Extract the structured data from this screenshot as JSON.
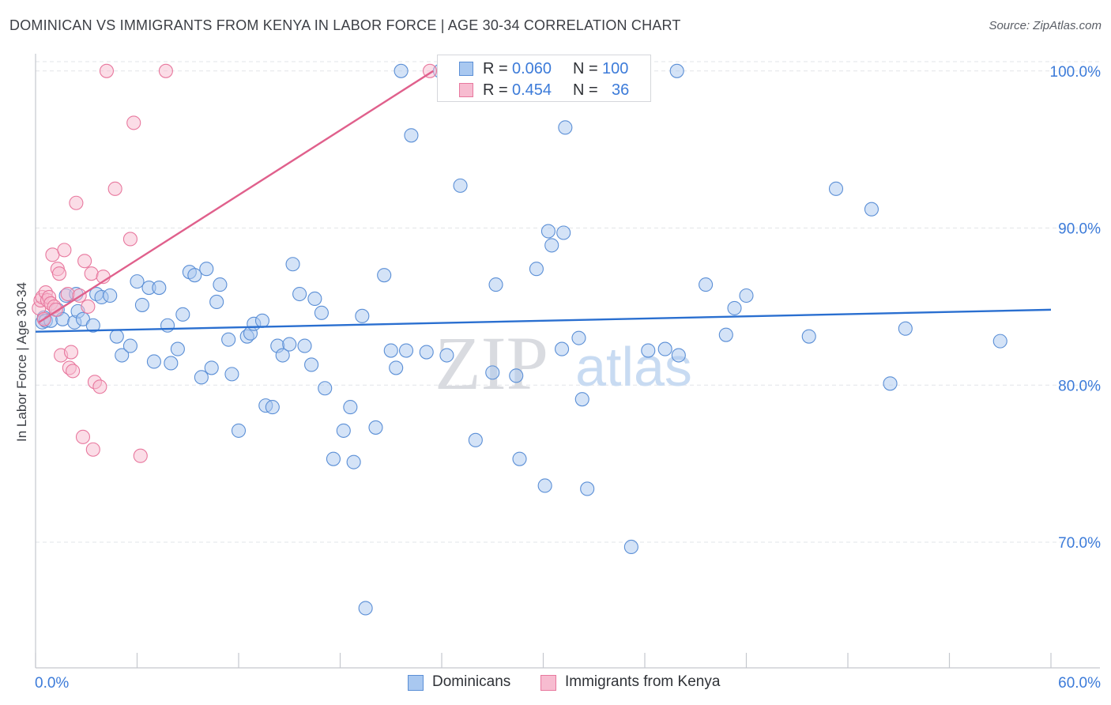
{
  "header": {
    "title": "DOMINICAN VS IMMIGRANTS FROM KENYA IN LABOR FORCE | AGE 30-34 CORRELATION CHART",
    "source": "Source: ZipAtlas.com"
  },
  "watermark": {
    "zip": "ZIP",
    "atlas": "atlas"
  },
  "colors": {
    "blue_fill": "#a9c8f0",
    "blue_stroke": "#5b8fd6",
    "blue_line": "#2a6fd0",
    "pink_fill": "#f7bcd0",
    "pink_stroke": "#e8789e",
    "pink_line": "#e0608c",
    "grid": "#e2e4e8",
    "axis_text": "#3c7bd9"
  },
  "legend": {
    "blue": {
      "r_label": "R =",
      "r_value": "0.060",
      "n_label": "N =",
      "n_value": "100"
    },
    "pink": {
      "r_label": "R =",
      "r_value": "0.454",
      "n_label": "N =",
      "n_value": "36"
    }
  },
  "chart_data": {
    "type": "scatter",
    "title": "DOMINICAN VS IMMIGRANTS FROM KENYA IN LABOR FORCE | AGE 30-34 CORRELATION CHART",
    "xlabel": "",
    "ylabel": "In Labor Force | Age 30-34",
    "xlim": [
      0,
      60
    ],
    "ylim": [
      62,
      101.5
    ],
    "x_tick_labels": [
      "0.0%",
      "60.0%"
    ],
    "y_ticks": [
      70,
      80,
      90,
      100
    ],
    "y_tick_labels": [
      "70.0%",
      "80.0%",
      "90.0%",
      "100.0%"
    ],
    "grid": true,
    "legend_position": "top-center",
    "series": [
      {
        "name": "Dominicans",
        "r": 0.06,
        "n": 100,
        "trend": [
          [
            0,
            83.4
          ],
          [
            60,
            84.8
          ]
        ],
        "points": [
          [
            0.4,
            84.0
          ],
          [
            0.5,
            84.3
          ],
          [
            0.6,
            84.1
          ],
          [
            0.9,
            84.1
          ],
          [
            1.3,
            84.8
          ],
          [
            1.6,
            84.2
          ],
          [
            1.8,
            85.7
          ],
          [
            2.3,
            84.0
          ],
          [
            2.4,
            85.8
          ],
          [
            2.5,
            84.7
          ],
          [
            2.8,
            84.2
          ],
          [
            3.4,
            83.8
          ],
          [
            3.6,
            85.8
          ],
          [
            3.9,
            85.6
          ],
          [
            4.4,
            85.7
          ],
          [
            4.8,
            83.1
          ],
          [
            5.1,
            81.9
          ],
          [
            5.6,
            82.5
          ],
          [
            6.0,
            86.6
          ],
          [
            6.3,
            85.1
          ],
          [
            6.7,
            86.2
          ],
          [
            7.3,
            86.2
          ],
          [
            7.0,
            81.5
          ],
          [
            7.8,
            83.8
          ],
          [
            8.0,
            81.4
          ],
          [
            8.4,
            82.3
          ],
          [
            8.7,
            84.5
          ],
          [
            9.1,
            87.2
          ],
          [
            9.4,
            87.0
          ],
          [
            9.8,
            80.5
          ],
          [
            10.1,
            87.4
          ],
          [
            10.4,
            81.1
          ],
          [
            10.7,
            85.3
          ],
          [
            10.9,
            86.4
          ],
          [
            11.4,
            82.9
          ],
          [
            11.6,
            80.7
          ],
          [
            12.0,
            77.1
          ],
          [
            12.5,
            83.1
          ],
          [
            12.7,
            83.3
          ],
          [
            12.9,
            83.9
          ],
          [
            13.4,
            84.1
          ],
          [
            13.6,
            78.7
          ],
          [
            14.0,
            78.6
          ],
          [
            14.3,
            82.5
          ],
          [
            14.6,
            81.9
          ],
          [
            15.0,
            82.6
          ],
          [
            15.2,
            87.7
          ],
          [
            15.6,
            85.8
          ],
          [
            15.9,
            82.5
          ],
          [
            16.3,
            81.3
          ],
          [
            16.5,
            85.5
          ],
          [
            16.9,
            84.6
          ],
          [
            17.1,
            79.8
          ],
          [
            17.6,
            75.3
          ],
          [
            18.2,
            77.1
          ],
          [
            18.6,
            78.6
          ],
          [
            18.8,
            75.1
          ],
          [
            19.3,
            84.4
          ],
          [
            19.5,
            65.8
          ],
          [
            20.1,
            77.3
          ],
          [
            20.6,
            87.0
          ],
          [
            21.0,
            82.2
          ],
          [
            21.3,
            81.1
          ],
          [
            21.6,
            100.0
          ],
          [
            21.9,
            82.2
          ],
          [
            22.2,
            95.9
          ],
          [
            23.1,
            82.1
          ],
          [
            23.9,
            100.0
          ],
          [
            24.3,
            81.9
          ],
          [
            25.1,
            92.7
          ],
          [
            26.0,
            76.5
          ],
          [
            27.0,
            80.8
          ],
          [
            27.2,
            86.4
          ],
          [
            28.1,
            100.0
          ],
          [
            28.4,
            80.6
          ],
          [
            28.6,
            75.3
          ],
          [
            29.6,
            87.4
          ],
          [
            30.1,
            73.6
          ],
          [
            30.3,
            89.8
          ],
          [
            30.5,
            88.9
          ],
          [
            31.1,
            82.3
          ],
          [
            31.2,
            89.7
          ],
          [
            31.3,
            96.4
          ],
          [
            32.1,
            83.0
          ],
          [
            32.3,
            79.1
          ],
          [
            32.6,
            73.4
          ],
          [
            35.2,
            69.7
          ],
          [
            36.2,
            82.2
          ],
          [
            37.2,
            82.3
          ],
          [
            37.9,
            100.0
          ],
          [
            38.0,
            81.9
          ],
          [
            39.6,
            86.4
          ],
          [
            40.8,
            83.2
          ],
          [
            41.3,
            84.9
          ],
          [
            42.0,
            85.7
          ],
          [
            45.7,
            83.1
          ],
          [
            47.3,
            92.5
          ],
          [
            49.4,
            91.2
          ],
          [
            50.5,
            80.1
          ],
          [
            51.4,
            83.6
          ],
          [
            57.0,
            82.8
          ]
        ]
      },
      {
        "name": "Immigrants from Kenya",
        "r": 0.454,
        "n": 36,
        "trend": [
          [
            0.2,
            84.0
          ],
          [
            23.5,
            100.0
          ]
        ],
        "points": [
          [
            0.2,
            84.9
          ],
          [
            0.3,
            85.4
          ],
          [
            0.4,
            85.6
          ],
          [
            0.5,
            84.2
          ],
          [
            0.6,
            85.9
          ],
          [
            0.7,
            85.4
          ],
          [
            0.8,
            85.6
          ],
          [
            0.9,
            85.2
          ],
          [
            1.0,
            88.3
          ],
          [
            1.1,
            85.0
          ],
          [
            1.2,
            84.8
          ],
          [
            1.3,
            87.4
          ],
          [
            1.4,
            87.1
          ],
          [
            1.5,
            81.9
          ],
          [
            1.7,
            88.6
          ],
          [
            1.9,
            85.8
          ],
          [
            2.0,
            81.1
          ],
          [
            2.1,
            82.1
          ],
          [
            2.2,
            80.9
          ],
          [
            2.4,
            91.6
          ],
          [
            2.6,
            85.7
          ],
          [
            2.8,
            76.7
          ],
          [
            2.9,
            87.9
          ],
          [
            3.1,
            85.0
          ],
          [
            3.3,
            87.1
          ],
          [
            3.4,
            75.9
          ],
          [
            3.5,
            80.2
          ],
          [
            3.8,
            79.9
          ],
          [
            4.0,
            86.9
          ],
          [
            4.2,
            100.0
          ],
          [
            4.7,
            92.5
          ],
          [
            5.6,
            89.3
          ],
          [
            5.8,
            96.7
          ],
          [
            6.2,
            75.5
          ],
          [
            7.7,
            100.0
          ],
          [
            23.3,
            100.0
          ]
        ]
      }
    ]
  },
  "bottom_legend": {
    "blue_label": "Dominicans",
    "pink_label": "Immigrants from Kenya"
  }
}
